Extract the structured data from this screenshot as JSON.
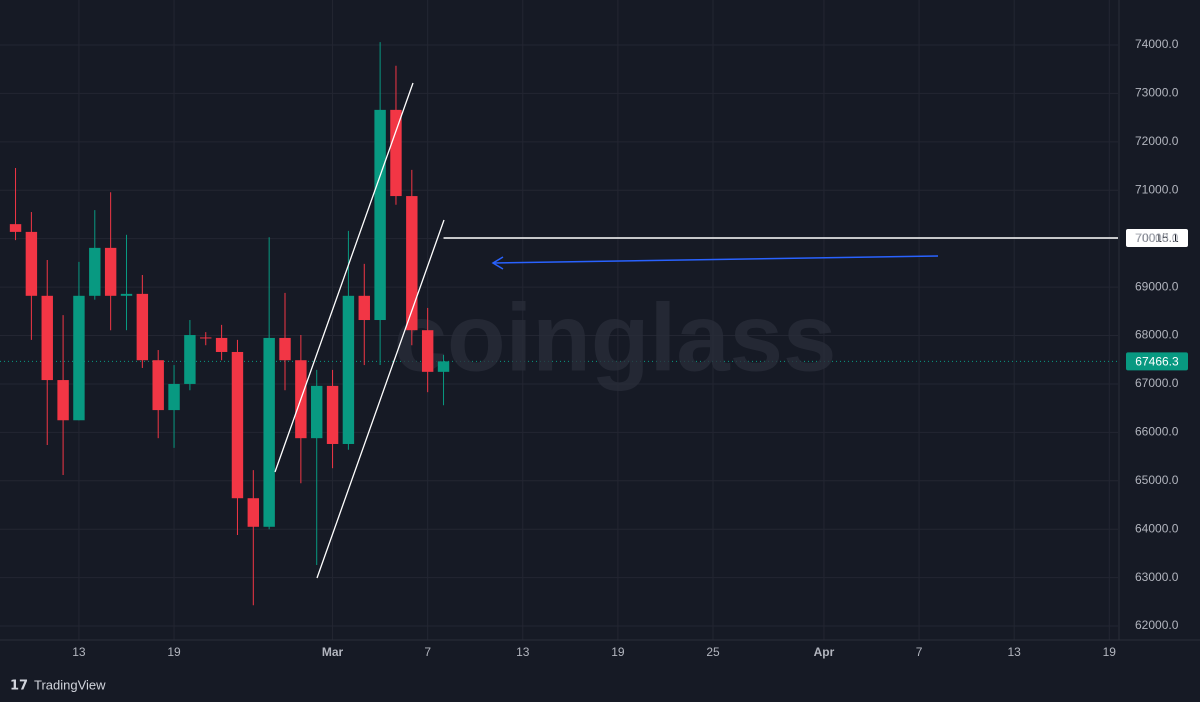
{
  "chart_data": {
    "type": "candlestick",
    "x": [
      -4,
      -3,
      -2,
      -1,
      0,
      1,
      2,
      3,
      4,
      5,
      6,
      7,
      8,
      9,
      10,
      11,
      12,
      13,
      14,
      15,
      16,
      17,
      18,
      19,
      20,
      21,
      22,
      23
    ],
    "open": [
      70300,
      70140,
      68820,
      67080,
      66250,
      68820,
      69810,
      68820,
      68860,
      67490,
      66460,
      67000,
      67960,
      67950,
      67660,
      64640,
      64050,
      67950,
      67490,
      65880,
      66960,
      65760,
      68820,
      68320,
      72660,
      70880,
      68110,
      67250
    ],
    "high": [
      71460,
      70550,
      69560,
      68420,
      69520,
      70590,
      70960,
      70080,
      69250,
      67700,
      67390,
      68320,
      68070,
      68220,
      67910,
      65220,
      70030,
      68880,
      68010,
      67290,
      67290,
      70160,
      69480,
      74060,
      73570,
      71420,
      68570,
      67600
    ],
    "low": [
      69970,
      67910,
      65740,
      65120,
      66250,
      68740,
      68110,
      68110,
      67330,
      65880,
      65680,
      66870,
      67800,
      67490,
      63880,
      62430,
      64000,
      66870,
      64950,
      63260,
      65260,
      65640,
      67390,
      67390,
      70700,
      67800,
      66830,
      66560
    ],
    "close": [
      70140,
      68820,
      67080,
      66250,
      68820,
      69810,
      68820,
      68860,
      67490,
      66460,
      67000,
      68010,
      67950,
      67660,
      64640,
      64050,
      67950,
      67490,
      65880,
      66960,
      65760,
      68820,
      68320,
      72660,
      70880,
      68110,
      67250,
      67466.3
    ],
    "up_color": "#089981",
    "down_color": "#f23645",
    "xlim": [
      -4.98,
      65.55
    ],
    "ylim": [
      61712,
      74929
    ],
    "xticks": [
      {
        "value": 0,
        "label": "13"
      },
      {
        "value": 6,
        "label": "19"
      },
      {
        "value": 16,
        "label": "Mar"
      },
      {
        "value": 22,
        "label": "7"
      },
      {
        "value": 28,
        "label": "13"
      },
      {
        "value": 34,
        "label": "19"
      },
      {
        "value": 40,
        "label": "25"
      },
      {
        "value": 47,
        "label": "Apr"
      },
      {
        "value": 53,
        "label": "7"
      },
      {
        "value": 59,
        "label": "13"
      },
      {
        "value": 65,
        "label": "19"
      }
    ],
    "yticks": [
      {
        "value": 62000,
        "label": "62000.0"
      },
      {
        "value": 63000,
        "label": "63000.0"
      },
      {
        "value": 64000,
        "label": "64000.0"
      },
      {
        "value": 65000,
        "label": "65000.0"
      },
      {
        "value": 66000,
        "label": "66000.0"
      },
      {
        "value": 67000,
        "label": "67000.0"
      },
      {
        "value": 68000,
        "label": "68000.0"
      },
      {
        "value": 69000,
        "label": "69000.0"
      },
      {
        "value": 70000,
        "label": "70000.0"
      },
      {
        "value": 71000,
        "label": "71000.0"
      },
      {
        "value": 72000,
        "label": "72000.0"
      },
      {
        "value": 73000,
        "label": "73000.0"
      },
      {
        "value": 74000,
        "label": "74000.0"
      }
    ],
    "grid": true,
    "price_line": 70015.1,
    "last_price": 67466.3,
    "watermark": "coinglass",
    "brand": "TradingView"
  }
}
